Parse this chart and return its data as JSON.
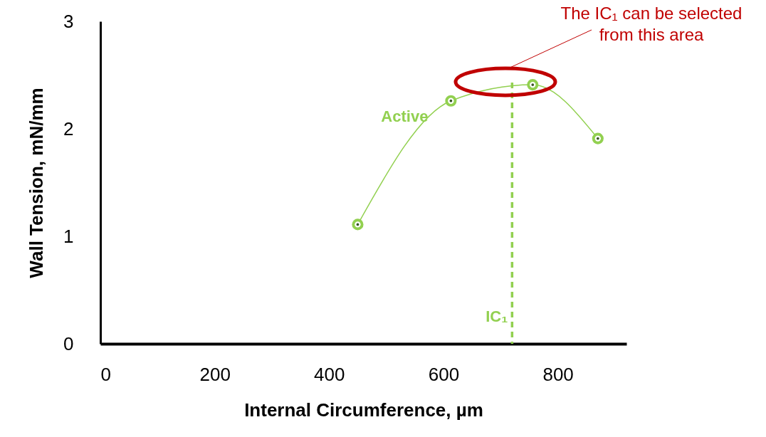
{
  "chart_data": {
    "type": "line",
    "xlabel": "Internal Circumference, µm",
    "ylabel": "Wall Tension, mN/mm",
    "x": [
      450,
      613,
      756,
      870
    ],
    "series": [
      {
        "name": "Active",
        "color": "#92d050",
        "values": [
          1.11,
          2.26,
          2.41,
          1.91
        ]
      }
    ],
    "xlim": [
      0,
      920
    ],
    "xticks": [
      0,
      200,
      400,
      600,
      800
    ],
    "ylim": [
      0,
      3
    ],
    "yticks": [
      0,
      1,
      2,
      3
    ],
    "grid": false,
    "marker": "circle",
    "line_style": "solid",
    "ref_lines": [
      {
        "axis": "x",
        "value": 720,
        "label": "IC₁",
        "color": "#92d050",
        "line_style": "dashed"
      }
    ],
    "annotations": [
      "The IC₁ can be selected\nfrom this area"
    ]
  }
}
